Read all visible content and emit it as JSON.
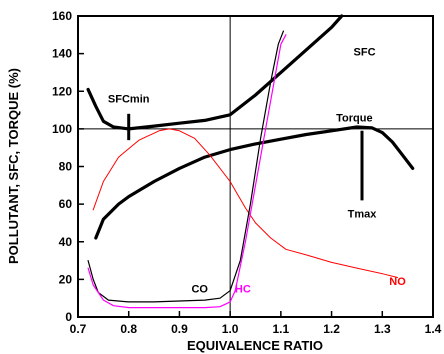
{
  "chart_data": {
    "type": "line",
    "xlabel": "EQUIVALENCE RATIO",
    "ylabel": "POLLUTANT, SFC, TORQUE (%)",
    "xlim": [
      0.7,
      1.4
    ],
    "ylim": [
      0,
      160
    ],
    "xticks": [
      "0.7",
      "0.8",
      "0.9",
      "1.0",
      "1.1",
      "1.2",
      "1.3",
      "1.4"
    ],
    "yticks": [
      "0",
      "20",
      "40",
      "60",
      "80",
      "100",
      "120",
      "140",
      "160"
    ],
    "reference_lines": {
      "x": 1.0,
      "y": 100
    },
    "series": [
      {
        "name": "SFC",
        "color": "#000000",
        "width": 3.2,
        "points": [
          [
            0.72,
            121
          ],
          [
            0.735,
            112
          ],
          [
            0.75,
            104
          ],
          [
            0.77,
            101
          ],
          [
            0.8,
            100
          ],
          [
            0.85,
            101.5
          ],
          [
            0.9,
            103
          ],
          [
            0.95,
            104.5
          ],
          [
            1.0,
            107.5
          ],
          [
            1.05,
            118
          ],
          [
            1.1,
            130
          ],
          [
            1.15,
            142
          ],
          [
            1.2,
            154
          ],
          [
            1.22,
            160
          ]
        ]
      },
      {
        "name": "Torque",
        "color": "#000000",
        "width": 3.2,
        "points": [
          [
            0.735,
            42
          ],
          [
            0.75,
            52
          ],
          [
            0.78,
            60
          ],
          [
            0.8,
            64
          ],
          [
            0.85,
            72
          ],
          [
            0.9,
            79
          ],
          [
            0.95,
            85
          ],
          [
            1.0,
            89
          ],
          [
            1.05,
            92
          ],
          [
            1.1,
            94.5
          ],
          [
            1.15,
            97
          ],
          [
            1.2,
            99
          ],
          [
            1.25,
            101
          ],
          [
            1.28,
            100.5
          ],
          [
            1.3,
            98
          ],
          [
            1.32,
            93
          ],
          [
            1.34,
            86
          ],
          [
            1.36,
            79
          ]
        ]
      },
      {
        "name": "NO",
        "color": "#ff0000",
        "width": 1,
        "points": [
          [
            0.73,
            57
          ],
          [
            0.75,
            72
          ],
          [
            0.78,
            85
          ],
          [
            0.82,
            94
          ],
          [
            0.86,
            99
          ],
          [
            0.88,
            100
          ],
          [
            0.9,
            99
          ],
          [
            0.93,
            95
          ],
          [
            0.96,
            86
          ],
          [
            1.0,
            72
          ],
          [
            1.03,
            58
          ],
          [
            1.05,
            50
          ],
          [
            1.08,
            42
          ],
          [
            1.11,
            36
          ],
          [
            1.15,
            33
          ],
          [
            1.2,
            29
          ],
          [
            1.25,
            26
          ],
          [
            1.3,
            23
          ],
          [
            1.33,
            21
          ]
        ]
      },
      {
        "name": "CO",
        "color": "#000000",
        "width": 1.2,
        "points": [
          [
            0.72,
            30
          ],
          [
            0.73,
            20
          ],
          [
            0.74,
            13
          ],
          [
            0.76,
            9
          ],
          [
            0.8,
            8
          ],
          [
            0.85,
            8
          ],
          [
            0.9,
            8.5
          ],
          [
            0.95,
            9
          ],
          [
            0.98,
            10
          ],
          [
            1.0,
            14
          ],
          [
            1.02,
            30
          ],
          [
            1.04,
            60
          ],
          [
            1.06,
            95
          ],
          [
            1.08,
            125
          ],
          [
            1.095,
            145
          ],
          [
            1.105,
            152
          ]
        ]
      },
      {
        "name": "HC",
        "color": "#ff00ff",
        "width": 1.2,
        "points": [
          [
            0.72,
            26
          ],
          [
            0.73,
            17
          ],
          [
            0.75,
            9
          ],
          [
            0.77,
            6
          ],
          [
            0.8,
            5
          ],
          [
            0.9,
            5
          ],
          [
            0.95,
            5
          ],
          [
            0.98,
            5.5
          ],
          [
            1.0,
            8
          ],
          [
            1.01,
            14
          ],
          [
            1.03,
            40
          ],
          [
            1.05,
            70
          ],
          [
            1.07,
            100
          ],
          [
            1.09,
            130
          ],
          [
            1.1,
            145
          ],
          [
            1.11,
            150
          ]
        ]
      }
    ],
    "annotations": [
      {
        "text": "SFCmin",
        "x": 0.8,
        "y": 114,
        "color": "#000000"
      },
      {
        "text": "SFC",
        "x": 1.265,
        "y": 139,
        "color": "#000000"
      },
      {
        "text": "Torque",
        "x": 1.245,
        "y": 104,
        "color": "#000000"
      },
      {
        "text": "Tmax",
        "x": 1.26,
        "y": 53,
        "color": "#000000"
      },
      {
        "text": "NO",
        "x": 1.33,
        "y": 17,
        "color": "#ff0000"
      },
      {
        "text": "CO",
        "x": 0.94,
        "y": 13,
        "color": "#000000"
      },
      {
        "text": "HC",
        "x": 1.025,
        "y": 13,
        "color": "#ff00ff"
      }
    ],
    "markers": [
      {
        "name": "sfcmin-marker",
        "x": 0.8,
        "y1": 108,
        "y2": 94
      },
      {
        "name": "tmax-marker",
        "x": 1.26,
        "y1": 99,
        "y2": 62
      }
    ]
  }
}
